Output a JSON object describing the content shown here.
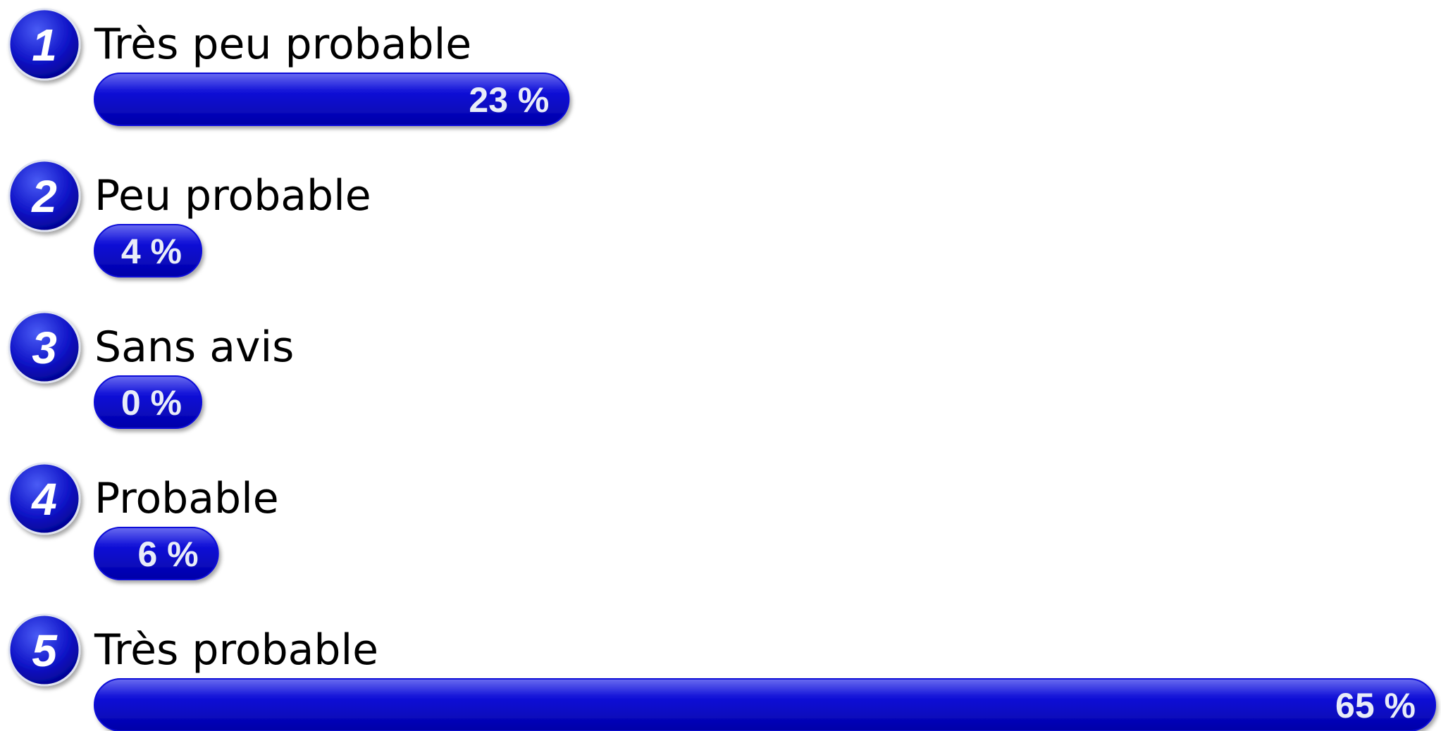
{
  "chart_data": {
    "type": "bar",
    "orientation": "horizontal",
    "index_labels": [
      "1",
      "2",
      "3",
      "4",
      "5"
    ],
    "categories": [
      "Très peu probable",
      "Peu probable",
      "Sans avis",
      "Probable",
      "Très probable"
    ],
    "values": [
      23,
      4,
      0,
      6,
      65
    ],
    "value_labels": [
      "23 %",
      "4 %",
      "0 %",
      "6 %",
      "65 %"
    ],
    "color": "#0a0ad8"
  }
}
